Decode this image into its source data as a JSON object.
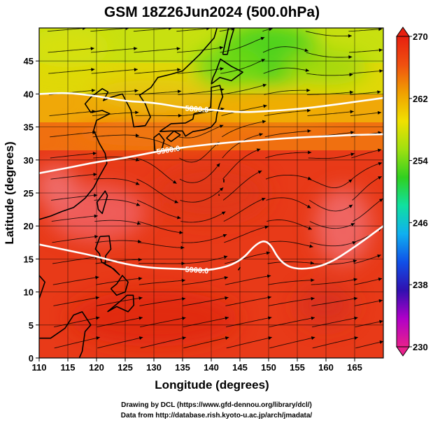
{
  "chart_data": {
    "type": "heatmap",
    "title": "GSM 18Z26Jun2024 (500.0hPa)",
    "xlabel": "Longitude (degrees)",
    "ylabel": "Latitude  (degrees)",
    "xlim": [
      110,
      170
    ],
    "ylim": [
      0,
      50
    ],
    "x_ticks": [
      110,
      115,
      120,
      125,
      130,
      135,
      140,
      145,
      150,
      155,
      160,
      165
    ],
    "y_ticks": [
      0,
      5,
      10,
      15,
      20,
      25,
      30,
      35,
      40,
      45
    ],
    "colorbar": {
      "min": 230,
      "max": 270,
      "ticks": [
        270,
        262,
        254,
        246,
        238,
        230
      ],
      "colors": [
        "#e8208c",
        "#b000c8",
        "#3010b0",
        "#1050e8",
        "#10b0f0",
        "#10e0a0",
        "#30d020",
        "#a0e010",
        "#f0e000",
        "#f0a000",
        "#f05010",
        "#e82010"
      ]
    },
    "contours": [
      {
        "label": "5900.0",
        "points": [
          [
            110,
            17.2
          ],
          [
            115,
            16.3
          ],
          [
            120,
            15.4
          ],
          [
            125,
            14.2
          ],
          [
            130,
            13.6
          ],
          [
            135,
            13.5
          ],
          [
            140,
            13.2
          ],
          [
            145,
            14.5
          ],
          [
            148,
            17.5
          ],
          [
            150,
            17.8
          ],
          [
            152,
            14.5
          ],
          [
            155,
            13.3
          ],
          [
            160,
            14.0
          ],
          [
            165,
            16.8
          ],
          [
            170,
            20.0
          ]
        ]
      },
      {
        "label": "5900.0",
        "points": [
          [
            110,
            28.0
          ],
          [
            115,
            28.8
          ],
          [
            120,
            29.7
          ],
          [
            125,
            30.3
          ],
          [
            130,
            31.2
          ],
          [
            135,
            31.9
          ],
          [
            140,
            32.4
          ],
          [
            145,
            32.8
          ],
          [
            150,
            33.1
          ],
          [
            155,
            33.4
          ],
          [
            160,
            33.6
          ],
          [
            165,
            33.8
          ],
          [
            170,
            33.9
          ]
        ]
      },
      {
        "label": "5800.0",
        "points": [
          [
            110,
            40.0
          ],
          [
            115,
            40.2
          ],
          [
            120,
            39.7
          ],
          [
            125,
            38.9
          ],
          [
            130,
            38.7
          ],
          [
            135,
            37.9
          ],
          [
            140,
            37.6
          ],
          [
            145,
            37.2
          ],
          [
            150,
            37.4
          ],
          [
            155,
            37.7
          ],
          [
            160,
            38.2
          ],
          [
            165,
            38.8
          ],
          [
            170,
            39.4
          ]
        ]
      }
    ],
    "wind_field": "streamlines",
    "contour_variable": "geopotential height"
  },
  "credits": {
    "line1": "Drawing by DCL (https://www.gfd-dennou.org/library/dcl/)",
    "line2": "Data from http://database.rish.kyoto-u.ac.jp/arch/jmadata/"
  }
}
